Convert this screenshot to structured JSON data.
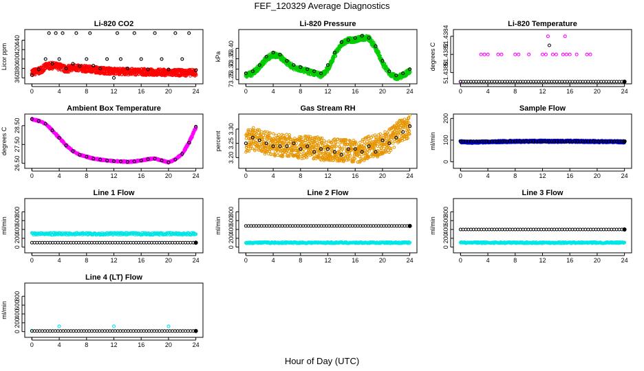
{
  "page": {
    "title": "FEF_120329  Average Diagnostics",
    "xlabel": "Hour of Day (UTC)"
  },
  "colors": {
    "red": "#ff0000",
    "green": "#00cc00",
    "magenta": "#ff00ff",
    "orange": "#e69500",
    "blue": "#0000cc",
    "cyan": "#00e5e5",
    "black": "#000000"
  },
  "chart_data": [
    {
      "type": "scatter",
      "title": "Li-820 CO2",
      "ylabel": "Licor ppm",
      "xlim": [
        0,
        24
      ],
      "xticks": [
        0,
        4,
        8,
        12,
        16,
        20,
        24
      ],
      "ylim": [
        352,
        458
      ],
      "yticks": [
        360,
        380,
        400,
        420,
        440
      ],
      "grid": false,
      "series": [
        {
          "color": "red",
          "style": "dense",
          "x": [
            0,
            1,
            2,
            3,
            4,
            5,
            6,
            7,
            8,
            9,
            10,
            11,
            12,
            13,
            14,
            15,
            16,
            17,
            18,
            19,
            20,
            21,
            22,
            23,
            24
          ],
          "y": [
            372,
            374,
            384,
            386,
            384,
            378,
            382,
            380,
            379,
            378,
            376,
            375,
            374,
            374,
            373,
            373,
            373,
            372,
            372,
            372,
            371,
            371,
            371,
            371,
            371
          ],
          "spread": 7
        },
        {
          "color": "black",
          "style": "points",
          "x": [
            0,
            1,
            2,
            2.5,
            3,
            3.5,
            4,
            4.5,
            5,
            6,
            6.5,
            7,
            8,
            8.5,
            9,
            10,
            11,
            12,
            12.5,
            13,
            14,
            15,
            16,
            17,
            18,
            19,
            20,
            21,
            22,
            23,
            24
          ],
          "y": [
            366,
            378,
            400,
            455,
            390,
            455,
            400,
            455,
            380,
            390,
            455,
            385,
            400,
            455,
            386,
            380,
            400,
            360,
            455,
            400,
            380,
            455,
            400,
            378,
            455,
            400,
            378,
            455,
            400,
            455,
            376
          ]
        }
      ]
    },
    {
      "type": "scatter",
      "title": "Li-820 Pressure",
      "ylabel": "kPa",
      "xlim": [
        0,
        24
      ],
      "xticks": [
        0,
        4,
        8,
        12,
        16,
        20,
        24
      ],
      "ylim": [
        73.24,
        73.48
      ],
      "yticks": [
        73.25,
        73.3,
        73.35,
        73.4
      ],
      "grid": false,
      "series": [
        {
          "color": "green",
          "style": "dense",
          "x": [
            0,
            1,
            2,
            3,
            4,
            5,
            6,
            7,
            8,
            9,
            10,
            11,
            12,
            13,
            14,
            15,
            16,
            17,
            18,
            19,
            20,
            21,
            22,
            23,
            24
          ],
          "y": [
            73.27,
            73.28,
            73.31,
            73.35,
            73.37,
            73.36,
            73.33,
            73.31,
            73.3,
            73.29,
            73.28,
            73.27,
            73.3,
            73.37,
            73.42,
            73.44,
            73.44,
            73.45,
            73.45,
            73.4,
            73.33,
            73.28,
            73.26,
            73.27,
            73.29
          ],
          "spread": 0.012
        },
        {
          "color": "black",
          "style": "points",
          "x": [
            0,
            1,
            2,
            3,
            4,
            5,
            6,
            7,
            8,
            9,
            10,
            11,
            12,
            13,
            14,
            15,
            16,
            17,
            18,
            19,
            20,
            21,
            22,
            23,
            24
          ],
          "y": [
            73.28,
            73.29,
            73.32,
            73.36,
            73.38,
            73.37,
            73.34,
            73.32,
            73.31,
            73.3,
            73.29,
            73.28,
            73.32,
            73.38,
            73.43,
            73.44,
            73.45,
            73.46,
            73.45,
            73.41,
            73.34,
            73.29,
            73.27,
            73.28,
            73.3
          ]
        }
      ]
    },
    {
      "type": "scatter",
      "title": "Li-820 Temperature",
      "ylabel": "degrees C",
      "xlim": [
        0,
        24
      ],
      "xticks": [
        0,
        4,
        8,
        12,
        16,
        20,
        24
      ],
      "ylim": [
        51.4379,
        51.43845
      ],
      "yticks": [
        51.438,
        51.4382,
        51.4384
      ],
      "yticklabels": [
        "51.4380",
        "51.4382",
        "51.4384"
      ],
      "grid": false,
      "series": [
        {
          "color": "magenta",
          "style": "points",
          "x": [
            0,
            3,
            3.5,
            4,
            5.5,
            6,
            8,
            8.5,
            10,
            12,
            12.5,
            12.8,
            13.5,
            14,
            15,
            15.3,
            15.5,
            16,
            17,
            18.5,
            19
          ],
          "y": [
            51.4379,
            51.4382,
            51.4382,
            51.4382,
            51.4382,
            51.4382,
            51.4382,
            51.4382,
            51.4382,
            51.4382,
            51.4382,
            51.4384,
            51.4382,
            51.4382,
            51.4382,
            51.4384,
            51.4382,
            51.4382,
            51.4382,
            51.4382,
            51.4382
          ]
        },
        {
          "color": "black",
          "style": "row",
          "x0": 0,
          "x1": 24,
          "y": 51.4379,
          "extra": [
            {
              "x": 13,
              "y": 51.4383
            }
          ]
        }
      ]
    },
    {
      "type": "scatter",
      "title": "Ambient Box Temperature",
      "ylabel": "degrees C",
      "xlim": [
        0,
        24
      ],
      "xticks": [
        0,
        4,
        8,
        12,
        16,
        20,
        24
      ],
      "ylim": [
        26.35,
        29.0
      ],
      "yticks": [
        26.5,
        27.5,
        28.5
      ],
      "grid": false,
      "series": [
        {
          "color": "magenta",
          "style": "dense",
          "x": [
            0,
            1,
            2,
            3,
            4,
            5,
            6,
            7,
            8,
            9,
            10,
            11,
            12,
            13,
            14,
            15,
            16,
            17,
            18,
            19,
            20,
            21,
            22,
            23,
            24
          ],
          "y": [
            28.85,
            28.75,
            28.6,
            28.25,
            27.85,
            27.45,
            27.15,
            26.95,
            26.85,
            26.75,
            26.7,
            26.65,
            26.62,
            26.6,
            26.58,
            26.6,
            26.65,
            26.72,
            26.75,
            26.65,
            26.55,
            26.7,
            27.0,
            27.6,
            28.4
          ],
          "spread": 0.04
        },
        {
          "color": "black",
          "style": "points",
          "x": [
            0,
            1,
            2,
            3,
            4,
            5,
            6,
            7,
            8,
            9,
            10,
            11,
            12,
            13,
            14,
            15,
            16,
            17,
            18,
            19,
            20,
            21,
            22,
            23,
            24
          ],
          "y": [
            28.85,
            28.75,
            28.6,
            28.25,
            27.85,
            27.45,
            27.15,
            26.95,
            26.85,
            26.75,
            26.7,
            26.65,
            26.62,
            26.6,
            26.58,
            26.6,
            26.65,
            26.72,
            26.75,
            26.65,
            26.55,
            26.7,
            27.0,
            27.6,
            28.45
          ]
        }
      ]
    },
    {
      "type": "scatter",
      "title": "Gas Stream RH",
      "ylabel": "percent",
      "xlim": [
        0,
        24
      ],
      "xticks": [
        0,
        4,
        8,
        12,
        16,
        20,
        24
      ],
      "ylim": [
        3.17,
        3.345
      ],
      "yticks": [
        3.2,
        3.25,
        3.3
      ],
      "grid": false,
      "series": [
        {
          "color": "orange",
          "style": "dense",
          "x": [
            0,
            1,
            2,
            3,
            4,
            5,
            6,
            7,
            8,
            9,
            10,
            11,
            12,
            13,
            14,
            15,
            16,
            17,
            18,
            19,
            20,
            21,
            22,
            23,
            24
          ],
          "y": [
            3.255,
            3.265,
            3.26,
            3.25,
            3.245,
            3.24,
            3.245,
            3.24,
            3.235,
            3.24,
            3.235,
            3.23,
            3.225,
            3.225,
            3.225,
            3.23,
            3.22,
            3.225,
            3.235,
            3.24,
            3.245,
            3.26,
            3.28,
            3.3,
            3.31
          ],
          "spread": 0.04
        },
        {
          "color": "black",
          "style": "points",
          "x": [
            0,
            1,
            2,
            3,
            4,
            5,
            6,
            7,
            8,
            9,
            10,
            11,
            12,
            13,
            14,
            15,
            16,
            17,
            18,
            19,
            20,
            21,
            22,
            23,
            24
          ],
          "y": [
            3.25,
            3.27,
            3.26,
            3.25,
            3.24,
            3.24,
            3.24,
            3.25,
            3.23,
            3.24,
            3.22,
            3.23,
            3.23,
            3.22,
            3.21,
            3.23,
            3.23,
            3.22,
            3.24,
            3.22,
            3.26,
            3.25,
            3.27,
            3.29,
            3.31
          ]
        }
      ]
    },
    {
      "type": "scatter",
      "title": "Sample Flow",
      "ylabel": "ml/min",
      "xlim": [
        0,
        24
      ],
      "xticks": [
        0,
        4,
        8,
        12,
        16,
        20,
        24
      ],
      "ylim": [
        -20,
        210
      ],
      "yticks": [
        0,
        100,
        200
      ],
      "grid": false,
      "series": [
        {
          "color": "blue",
          "style": "dense",
          "x": [
            0,
            2,
            4,
            6,
            8,
            10,
            12,
            14,
            16,
            18,
            20,
            22,
            24
          ],
          "y": [
            92,
            90,
            92,
            93,
            94,
            94,
            95,
            94,
            95,
            94,
            93,
            93,
            92
          ],
          "spread": 5
        },
        {
          "color": "black",
          "style": "row",
          "x0": 0,
          "x1": 24,
          "y": 94,
          "extra": []
        }
      ]
    },
    {
      "type": "scatter",
      "title": "Line 1 Flow",
      "ylabel": "ml/min",
      "xlim": [
        0,
        24
      ],
      "xticks": [
        0,
        4,
        8,
        12,
        16,
        20,
        24
      ],
      "ylim": [
        -80,
        1050
      ],
      "yticks": [
        0,
        200,
        400,
        600,
        800
      ],
      "grid": false,
      "series": [
        {
          "color": "cyan",
          "style": "band",
          "x0": 0,
          "x1": 24,
          "y": 300,
          "spread": 25
        },
        {
          "color": "black",
          "style": "row",
          "x0": 0,
          "x1": 24,
          "y": 100,
          "extra": []
        }
      ]
    },
    {
      "type": "scatter",
      "title": "Line 2 Flow",
      "ylabel": "ml/min",
      "xlim": [
        0,
        24
      ],
      "xticks": [
        0,
        4,
        8,
        12,
        16,
        20,
        24
      ],
      "ylim": [
        -80,
        1050
      ],
      "yticks": [
        0,
        200,
        400,
        600,
        800
      ],
      "grid": false,
      "series": [
        {
          "color": "cyan",
          "style": "band",
          "x0": 0,
          "x1": 24,
          "y": 100,
          "spread": 15
        },
        {
          "color": "black",
          "style": "row",
          "x0": 0,
          "x1": 24,
          "y": 480,
          "extra": []
        }
      ]
    },
    {
      "type": "scatter",
      "title": "Line 3 Flow",
      "ylabel": "ml/min",
      "xlim": [
        0,
        24
      ],
      "xticks": [
        0,
        4,
        8,
        12,
        16,
        20,
        24
      ],
      "ylim": [
        -80,
        1050
      ],
      "yticks": [
        0,
        200,
        400,
        600,
        800
      ],
      "grid": false,
      "series": [
        {
          "color": "cyan",
          "style": "band",
          "x0": 0,
          "x1": 24,
          "y": 100,
          "spread": 15
        },
        {
          "color": "black",
          "style": "row",
          "x0": 0,
          "x1": 24,
          "y": 400,
          "extra": []
        }
      ]
    },
    {
      "type": "scatter",
      "title": "Line 4 (LT) Flow",
      "ylabel": "ml/min",
      "xlim": [
        0,
        24
      ],
      "xticks": [
        0,
        4,
        8,
        12,
        16,
        20,
        24
      ],
      "ylim": [
        -80,
        1050
      ],
      "yticks": [
        0,
        200,
        400,
        600,
        800
      ],
      "grid": false,
      "series": [
        {
          "color": "cyan",
          "style": "points",
          "x": [
            0,
            4,
            12,
            20
          ],
          "y": [
            20,
            120,
            120,
            120
          ]
        },
        {
          "color": "black",
          "style": "row",
          "x0": 0,
          "x1": 24,
          "y": 15,
          "extra": []
        }
      ]
    }
  ]
}
